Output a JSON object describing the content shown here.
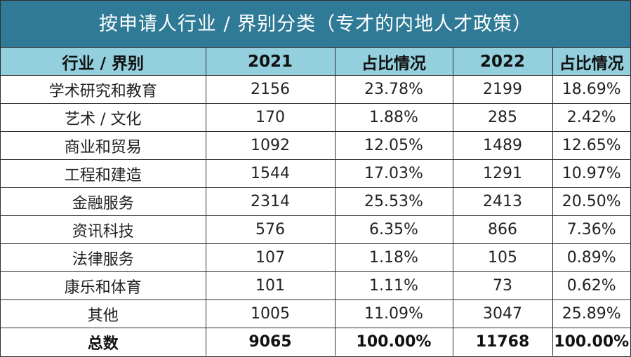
{
  "title": "按申请人行业 / 界别分类（专才的内地人才政策）",
  "colors": {
    "title_bg": "#2f7a96",
    "header_bg": "#93cfdc",
    "border": "#2f2f2f"
  },
  "headers": [
    "行业 / 界别",
    "2021",
    "占比情况",
    "2022",
    "占比情况"
  ],
  "rows": [
    {
      "industry": "学术研究和教育",
      "y2021": "2156",
      "p2021": "23.78%",
      "y2022": "2199",
      "p2022": "18.69%"
    },
    {
      "industry": "艺术 / 文化",
      "y2021": "170",
      "p2021": "1.88%",
      "y2022": "285",
      "p2022": "2.42%"
    },
    {
      "industry": "商业和贸易",
      "y2021": "1092",
      "p2021": "12.05%",
      "y2022": "1489",
      "p2022": "12.65%"
    },
    {
      "industry": "工程和建造",
      "y2021": "1544",
      "p2021": "17.03%",
      "y2022": "1291",
      "p2022": "10.97%"
    },
    {
      "industry": "金融服务",
      "y2021": "2314",
      "p2021": "25.53%",
      "y2022": "2413",
      "p2022": "20.50%"
    },
    {
      "industry": "资讯科技",
      "y2021": "576",
      "p2021": "6.35%",
      "y2022": "866",
      "p2022": "7.36%"
    },
    {
      "industry": "法律服务",
      "y2021": "107",
      "p2021": "1.18%",
      "y2022": "105",
      "p2022": "0.89%"
    },
    {
      "industry": "康乐和体育",
      "y2021": "101",
      "p2021": "1.11%",
      "y2022": "73",
      "p2022": "0.62%"
    },
    {
      "industry": "其他",
      "y2021": "1005",
      "p2021": "11.09%",
      "y2022": "3047",
      "p2022": "25.89%"
    }
  ],
  "total": {
    "industry": "总数",
    "y2021": "9065",
    "p2021": "100.00%",
    "y2022": "11768",
    "p2022": "100.00%"
  }
}
